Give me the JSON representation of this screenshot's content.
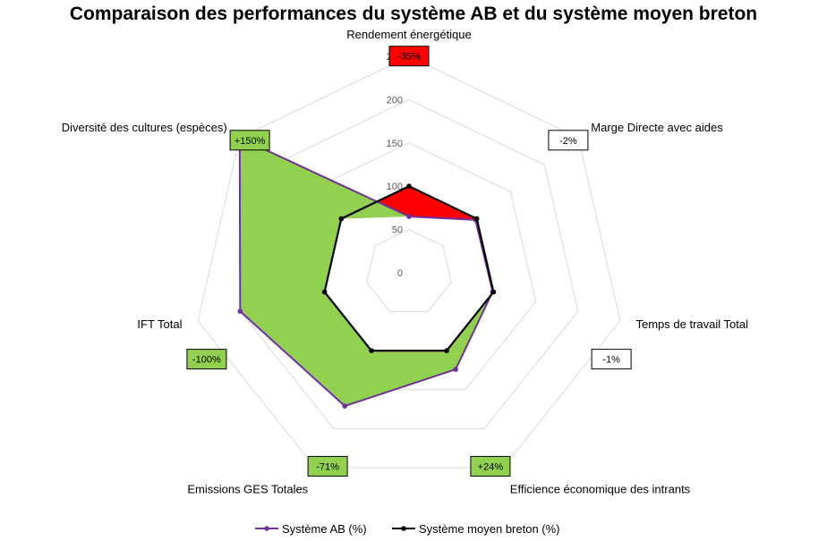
{
  "chart_data": {
    "type": "radar",
    "title": "Comparaison des performances du système AB et du système moyen breton",
    "axes": [
      "Rendement énergétique",
      "Marge Directe avec aides",
      "Temps de travail Total",
      "Efficience économique des intrants",
      "Emissions GES Totales",
      "IFT Total",
      "Diversité des cultures (espèces)"
    ],
    "r_ticks": [
      0,
      50,
      100,
      150,
      200,
      250
    ],
    "r_range": [
      0,
      250
    ],
    "grid": true,
    "series": [
      {
        "name": "Système AB (%)",
        "values": [
          65,
          98,
          99,
          124,
          171,
          200,
          250
        ],
        "color": "#7030A0",
        "fill": "#92D050"
      },
      {
        "name": "Système moyen breton (%)",
        "values": [
          100,
          100,
          100,
          100,
          100,
          100,
          100
        ],
        "color": "#000000"
      }
    ],
    "annotations": [
      {
        "axis": "Rendement énergétique",
        "text": "-35%",
        "fill": "#FF0000"
      },
      {
        "axis": "Marge Directe avec aides",
        "text": "-2%",
        "fill": "#FFFFFF"
      },
      {
        "axis": "Temps de travail Total",
        "text": "-1%",
        "fill": "#FFFFFF"
      },
      {
        "axis": "Efficience économique des intrants",
        "text": "+24%",
        "fill": "#92D050"
      },
      {
        "axis": "Emissions GES Totales",
        "text": "-71%",
        "fill": "#92D050"
      },
      {
        "axis": "IFT Total",
        "text": "-100%",
        "fill": "#92D050"
      },
      {
        "axis": "Diversité des cultures (espèces)",
        "text": "+150%",
        "fill": "#92D050"
      }
    ],
    "negative_area_fill": "#FF0000",
    "legend_position": "bottom"
  }
}
